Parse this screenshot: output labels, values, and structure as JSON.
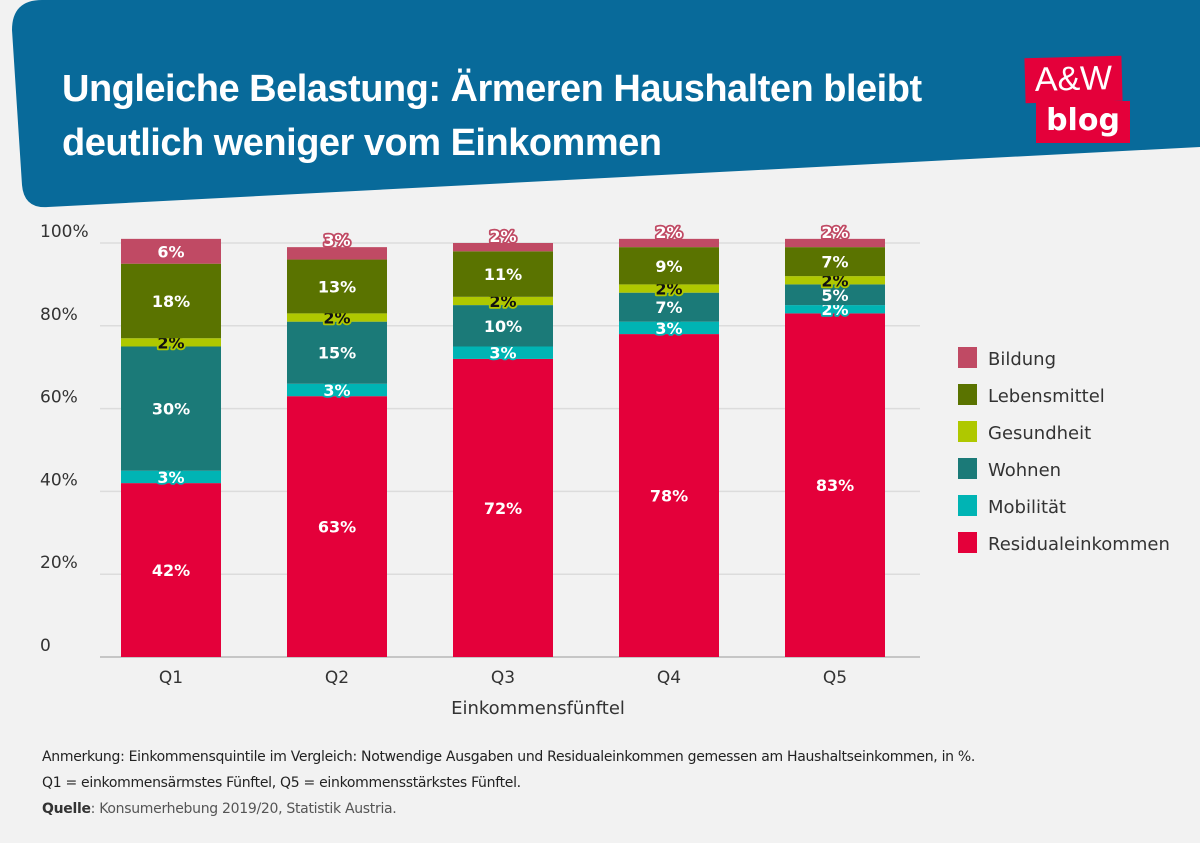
{
  "header": {
    "title_line1": "Ungleiche Belastung: Ärmeren Haushalten bleibt",
    "title_line2": "deutlich weniger vom Einkommen",
    "logo_text": "A&W blog",
    "background_color": "#086a9a",
    "logo_color": "#e4003a"
  },
  "chart_data": {
    "type": "bar",
    "stacked": true,
    "categories": [
      "Q1",
      "Q2",
      "Q3",
      "Q4",
      "Q5"
    ],
    "xlabel": "Einkommensfünftel",
    "ylabel": "",
    "ylim": [
      0,
      100
    ],
    "yticks": [
      0,
      20,
      40,
      60,
      80,
      100
    ],
    "ytick_labels": [
      "0",
      "20%",
      "40%",
      "60%",
      "80%",
      "100%"
    ],
    "grid": true,
    "legend_position": "right",
    "series": [
      {
        "name": "Residualeinkommen",
        "color": "#e4003a",
        "values": [
          42,
          63,
          72,
          78,
          83
        ]
      },
      {
        "name": "Mobilität",
        "color": "#00b4b4",
        "values": [
          3,
          3,
          3,
          3,
          2
        ]
      },
      {
        "name": "Wohnen",
        "color": "#1b7a78",
        "values": [
          30,
          15,
          10,
          7,
          5
        ]
      },
      {
        "name": "Gesundheit",
        "color": "#afc800",
        "values": [
          2,
          2,
          2,
          2,
          2
        ]
      },
      {
        "name": "Lebensmittel",
        "color": "#5a7300",
        "values": [
          18,
          13,
          11,
          9,
          7
        ]
      },
      {
        "name": "Bildung",
        "color": "#c04a64",
        "values": [
          6,
          3,
          2,
          2,
          2
        ]
      }
    ],
    "legend_order": [
      "Bildung",
      "Lebensmittel",
      "Gesundheit",
      "Wohnen",
      "Mobilität",
      "Residualeinkommen"
    ]
  },
  "notes": {
    "line1": "Anmerkung: Einkommensquintile im Vergleich: Notwendige Ausgaben und Residualeinkommen gemessen am Haushaltseinkommen, in %.",
    "line2": "Q1 = einkommensärmstes Fünftel, Q5 = einkommensstärkstes Fünftel.",
    "source_label": "Quelle",
    "source_text": ": Konsumerhebung 2019/20, Statistik Austria."
  }
}
